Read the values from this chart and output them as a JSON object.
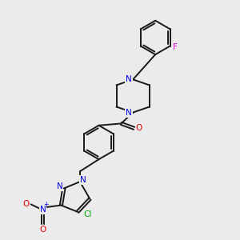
{
  "bg_color": "#ebebeb",
  "bond_color": "#1a1a1a",
  "N_color": "#0000ee",
  "O_color": "#dd0000",
  "F_color": "#ee00ee",
  "Cl_color": "#00aa00",
  "lw": 1.4,
  "dbo": 0.055,
  "fig_w": 3.0,
  "fig_h": 3.0,
  "dpi": 100,
  "xlim": [
    0,
    10
  ],
  "ylim": [
    0,
    10
  ]
}
